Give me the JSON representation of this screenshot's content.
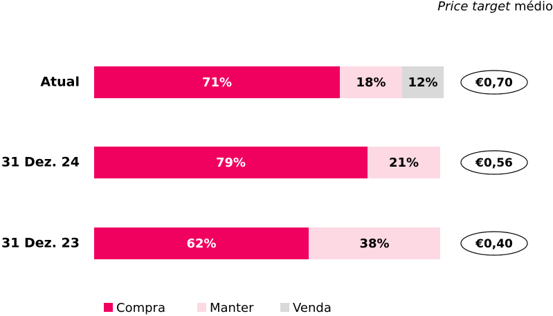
{
  "chart_data": {
    "type": "bar",
    "orientation": "horizontal",
    "stacked": true,
    "header": {
      "italic": "Price target",
      "plain": "médio"
    },
    "categories": [
      "Atual",
      "31 Dez. 24",
      "31 Dez. 23"
    ],
    "series": [
      {
        "name": "Compra",
        "color": "#f0005f",
        "label_color": "#ffffff",
        "values": [
          71,
          79,
          62
        ],
        "value_labels": [
          "71%",
          "79%",
          "62%"
        ]
      },
      {
        "name": "Manter",
        "color": "#fdd9e3",
        "label_color": "#000000",
        "values": [
          18,
          21,
          38
        ],
        "value_labels": [
          "18%",
          "21%",
          "38%"
        ]
      },
      {
        "name": "Venda",
        "color": "#d9d9d9",
        "label_color": "#000000",
        "values": [
          12,
          null,
          null
        ],
        "value_labels": [
          "12%",
          null,
          null
        ]
      }
    ],
    "price_targets": [
      "€0,70",
      "€0,56",
      "€0,40"
    ]
  }
}
